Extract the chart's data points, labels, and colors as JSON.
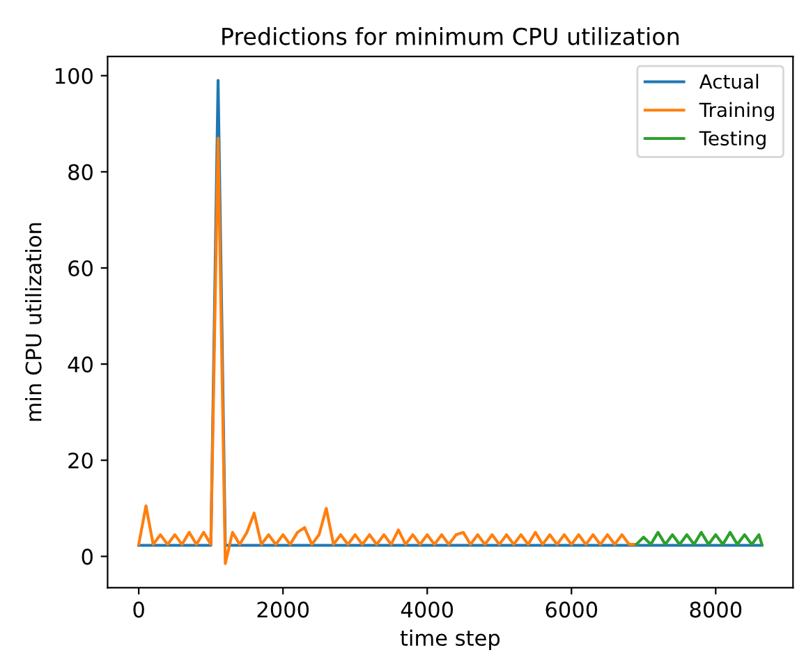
{
  "chart_data": {
    "type": "line",
    "title": "Predictions for minimum CPU utilization",
    "xlabel": "time step",
    "ylabel": "min CPU utilization",
    "xlim": [
      -432,
      9072
    ],
    "ylim": [
      -6.5,
      104
    ],
    "xticks": [
      0,
      2000,
      4000,
      6000,
      8000
    ],
    "yticks": [
      0,
      20,
      40,
      60,
      80,
      100
    ],
    "grid": false,
    "legend": "top right",
    "marker": "none",
    "line_style": "solid",
    "series": [
      {
        "name": "Actual",
        "color": "#1f77b4",
        "x": [
          0,
          200,
          400,
          600,
          800,
          1000,
          1100,
          1200,
          1400,
          1600,
          1800,
          2000,
          2200,
          2400,
          2600,
          2800,
          3000,
          3200,
          3400,
          3600,
          3800,
          4000,
          4200,
          4400,
          4600,
          4800,
          5000,
          5200,
          5400,
          5600,
          5800,
          6000,
          6200,
          6400,
          6600,
          6800,
          7000,
          7200,
          7400,
          7600,
          7800,
          8000,
          8200,
          8400,
          8600,
          8640
        ],
        "values": [
          2.3,
          2.3,
          2.3,
          2.3,
          2.3,
          2.3,
          99,
          2.3,
          2.3,
          2.3,
          2.3,
          2.3,
          2.3,
          2.3,
          2.3,
          2.3,
          2.3,
          2.3,
          2.3,
          2.3,
          2.3,
          2.3,
          2.3,
          2.3,
          2.3,
          2.3,
          2.3,
          2.3,
          2.3,
          2.3,
          2.3,
          2.3,
          2.3,
          2.3,
          2.3,
          2.3,
          2.3,
          2.3,
          2.3,
          2.3,
          2.3,
          2.3,
          2.3,
          2.3,
          2.3,
          2.3
        ]
      },
      {
        "name": "Training",
        "color": "#ff7f0e",
        "x": [
          0,
          100,
          200,
          300,
          400,
          500,
          600,
          700,
          800,
          900,
          1000,
          1100,
          1200,
          1300,
          1400,
          1500,
          1600,
          1700,
          1800,
          1900,
          2000,
          2100,
          2200,
          2300,
          2400,
          2500,
          2600,
          2700,
          2800,
          2900,
          3000,
          3100,
          3200,
          3300,
          3400,
          3500,
          3600,
          3700,
          3800,
          3900,
          4000,
          4100,
          4200,
          4300,
          4400,
          4500,
          4600,
          4700,
          4800,
          4900,
          5000,
          5100,
          5200,
          5300,
          5400,
          5500,
          5600,
          5700,
          5800,
          5900,
          6000,
          6100,
          6200,
          6300,
          6400,
          6500,
          6600,
          6700,
          6800,
          6900
        ],
        "values": [
          2.5,
          10.5,
          2.5,
          4.5,
          2.5,
          4.5,
          2.5,
          5,
          2.5,
          5,
          2.5,
          87,
          -1.5,
          5,
          2.5,
          5,
          9,
          2.5,
          4.5,
          2.5,
          4.5,
          2.5,
          5,
          6,
          2.5,
          4.5,
          10,
          2.5,
          4.5,
          2.5,
          4.5,
          2.5,
          4.5,
          2.5,
          4.5,
          2.5,
          5.5,
          2.5,
          4.5,
          2.5,
          4.5,
          2.5,
          4.5,
          2.5,
          4.5,
          5,
          2.5,
          4.5,
          2.5,
          4.5,
          2.5,
          4.5,
          2.5,
          4.5,
          2.5,
          5,
          2.5,
          4.5,
          2.5,
          4.5,
          2.5,
          4.5,
          2.5,
          4.5,
          2.5,
          4.5,
          2.5,
          4.5,
          2.5,
          2.5
        ]
      },
      {
        "name": "Testing",
        "color": "#2ca02c",
        "x": [
          6900,
          7000,
          7100,
          7200,
          7300,
          7400,
          7500,
          7600,
          7700,
          7800,
          7900,
          8000,
          8100,
          8200,
          8300,
          8400,
          8500,
          8600,
          8640
        ],
        "values": [
          2.5,
          4,
          2.5,
          5,
          2.5,
          4.5,
          2.5,
          4.5,
          2.5,
          5,
          2.5,
          4.5,
          2.5,
          5,
          2.5,
          4.5,
          2.5,
          4.5,
          2.5
        ]
      }
    ]
  }
}
